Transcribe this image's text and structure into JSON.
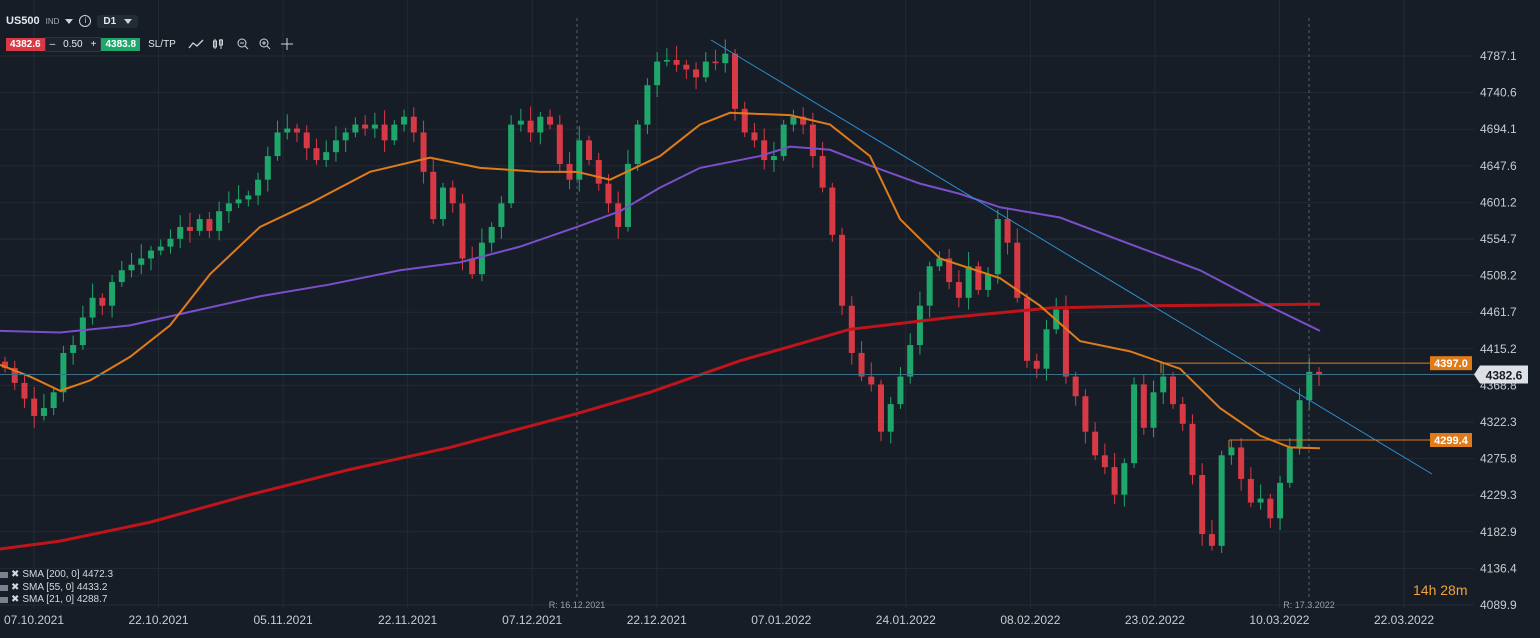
{
  "header": {
    "symbol": "US500",
    "type": "IND",
    "timeframe": "D1",
    "sell_price": "4382.6",
    "minus": "–",
    "lot": "0.50",
    "plus": "+",
    "buy_price": "4383.8",
    "sltp_label": "SL/TP"
  },
  "icons": [
    "line-chart-icon",
    "candles-icon",
    "zoom-out-icon",
    "zoom-in-icon",
    "crosshair-icon"
  ],
  "legend": [
    {
      "label": "SMA [200, 0] 4472.3"
    },
    {
      "label": "SMA [55, 0] 4433.2"
    },
    {
      "label": "SMA [21, 0] 4288.7"
    }
  ],
  "timer": "14h 28m",
  "chart_data": {
    "type": "candlestick",
    "y_ticks": [
      "4787.1",
      "4740.6",
      "4694.1",
      "4647.6",
      "4601.2",
      "4554.7",
      "4508.2",
      "4461.7",
      "4415.2",
      "4368.8",
      "4322.3",
      "4275.8",
      "4229.3",
      "4182.9",
      "4136.4",
      "4089.9"
    ],
    "x_ticks": [
      "07.10.2021",
      "22.10.2021",
      "05.11.2021",
      "22.11.2021",
      "07.12.2021",
      "22.12.2021",
      "07.01.2022",
      "24.01.2022",
      "08.02.2022",
      "23.02.2022",
      "10.03.2022",
      "22.03.2022"
    ],
    "ylim": [
      4089.9,
      4787.1
    ],
    "price_label": "4382.6",
    "level_labels": [
      "4397.0",
      "4299.4"
    ],
    "marker_labels": [
      "R: 16.12.2021",
      "R: 17.3.2022"
    ],
    "colors": {
      "up": "#1fa76b",
      "down": "#d83a45",
      "sma200": "#c0141b",
      "sma55": "#7b4fc9",
      "sma21": "#e07b1a",
      "trend": "#2a8fd0",
      "level": "#e07b1a",
      "grid": "#222a35"
    }
  }
}
